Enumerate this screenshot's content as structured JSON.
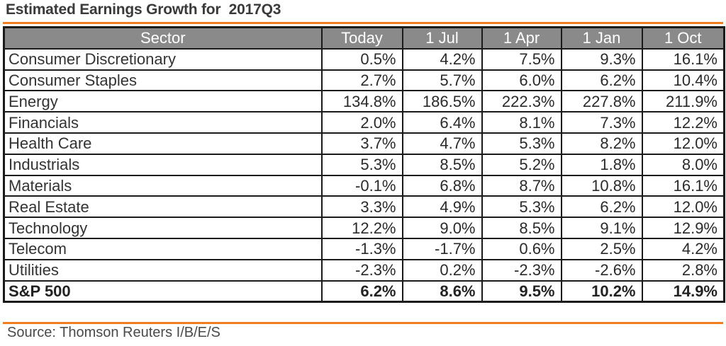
{
  "title": "Estimated Earnings Growth for  2017Q3",
  "accent_color": "#f07d1e",
  "header_bg_color": "#8a8a8a",
  "columns": [
    "Sector",
    "Today",
    "1 Jul",
    "1 Apr",
    "1 Jan",
    "1 Oct"
  ],
  "rows": [
    {
      "sector": "Consumer Discretionary",
      "values": [
        "0.5%",
        "4.2%",
        "7.5%",
        "9.3%",
        "16.1%"
      ]
    },
    {
      "sector": "Consumer Staples",
      "values": [
        "2.7%",
        "5.7%",
        "6.0%",
        "6.2%",
        "10.4%"
      ]
    },
    {
      "sector": "Energy",
      "values": [
        "134.8%",
        "186.5%",
        "222.3%",
        "227.8%",
        "211.9%"
      ]
    },
    {
      "sector": "Financials",
      "values": [
        "2.0%",
        "6.4%",
        "8.1%",
        "7.3%",
        "12.2%"
      ]
    },
    {
      "sector": "Health Care",
      "values": [
        "3.7%",
        "4.7%",
        "5.3%",
        "8.2%",
        "12.0%"
      ]
    },
    {
      "sector": "Industrials",
      "values": [
        "5.3%",
        "8.5%",
        "5.2%",
        "1.8%",
        "8.0%"
      ]
    },
    {
      "sector": "Materials",
      "values": [
        "-0.1%",
        "6.8%",
        "8.7%",
        "10.8%",
        "16.1%"
      ]
    },
    {
      "sector": "Real Estate",
      "values": [
        "3.3%",
        "4.9%",
        "5.3%",
        "6.2%",
        "12.0%"
      ]
    },
    {
      "sector": "Technology",
      "values": [
        "12.2%",
        "9.0%",
        "8.5%",
        "9.1%",
        "12.9%"
      ]
    },
    {
      "sector": "Telecom",
      "values": [
        "-1.3%",
        "-1.7%",
        "0.6%",
        "2.5%",
        "4.2%"
      ]
    },
    {
      "sector": "Utilities",
      "values": [
        "-2.3%",
        "0.2%",
        "-2.3%",
        "-2.6%",
        "2.8%"
      ]
    }
  ],
  "total": {
    "sector": "S&P 500",
    "values": [
      "6.2%",
      "8.6%",
      "9.5%",
      "10.2%",
      "14.9%"
    ]
  },
  "source": "Source: Thomson Reuters I/B/E/S"
}
